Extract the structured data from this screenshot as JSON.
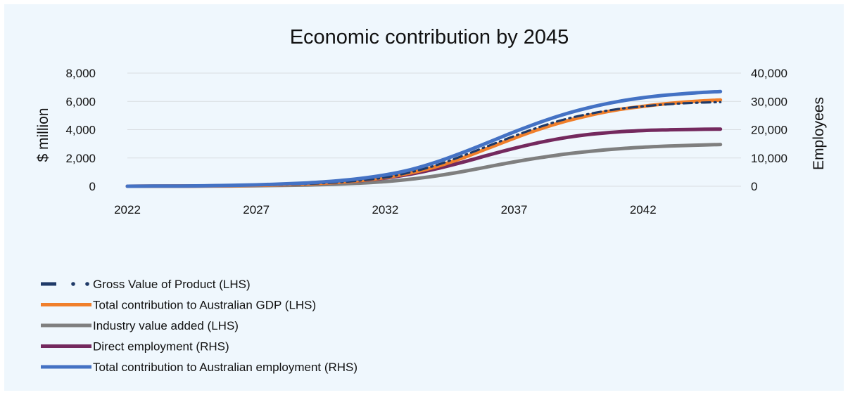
{
  "chart_data": {
    "type": "line",
    "title": "Economic contribution by 2045",
    "ylabel_left": "$ million",
    "ylabel_right": "Employees",
    "x_ticks": [
      "2022",
      "2027",
      "2032",
      "2037",
      "2042"
    ],
    "y_left_ticks": [
      "0",
      "2,000",
      "4,000",
      "6,000",
      "8,000"
    ],
    "y_right_ticks": [
      "0",
      "10,000",
      "20,000",
      "30,000",
      "40,000"
    ],
    "ylim_left": [
      0,
      8000
    ],
    "ylim_right": [
      0,
      40000
    ],
    "xlim": [
      2022,
      2045
    ],
    "grid": "horizontal",
    "legend_position": "bottom-left",
    "x": [
      2022,
      2023,
      2024,
      2025,
      2026,
      2027,
      2028,
      2029,
      2030,
      2031,
      2032,
      2033,
      2034,
      2035,
      2036,
      2037,
      2038,
      2039,
      2040,
      2041,
      2042,
      2043,
      2044,
      2045
    ],
    "series": [
      {
        "name": "Gross Value of Product (LHS)",
        "axis": "left",
        "color": "#1f3a68",
        "dash": "dash-dot",
        "values": [
          0,
          5,
          10,
          20,
          40,
          70,
          110,
          170,
          260,
          400,
          620,
          1000,
          1500,
          2150,
          2850,
          3550,
          4200,
          4750,
          5150,
          5450,
          5650,
          5800,
          5900,
          5950
        ]
      },
      {
        "name": "Total contribution to Australian GDP (LHS)",
        "axis": "left",
        "color": "#f07f2b",
        "dash": "solid",
        "values": [
          0,
          5,
          10,
          20,
          40,
          70,
          110,
          170,
          260,
          400,
          620,
          950,
          1400,
          2000,
          2700,
          3400,
          4050,
          4600,
          5050,
          5400,
          5650,
          5850,
          6000,
          6100
        ]
      },
      {
        "name": "Industry value added (LHS)",
        "axis": "left",
        "color": "#7f7f7f",
        "dash": "solid",
        "values": [
          0,
          3,
          6,
          12,
          22,
          38,
          60,
          90,
          140,
          220,
          330,
          500,
          740,
          1040,
          1380,
          1720,
          2020,
          2280,
          2480,
          2640,
          2760,
          2840,
          2900,
          2950
        ]
      },
      {
        "name": "Direct employment (RHS)",
        "axis": "right",
        "color": "#74295e",
        "dash": "solid",
        "values": [
          0,
          30,
          60,
          120,
          220,
          370,
          580,
          880,
          1300,
          1950,
          2900,
          4300,
          6200,
          8500,
          11000,
          13400,
          15500,
          17200,
          18400,
          19200,
          19700,
          19950,
          20100,
          20200
        ]
      },
      {
        "name": "Total contribution to Australian employment (RHS)",
        "axis": "right",
        "color": "#4472c4",
        "dash": "solid",
        "values": [
          0,
          40,
          80,
          160,
          300,
          500,
          800,
          1200,
          1800,
          2700,
          4000,
          5900,
          8600,
          11900,
          15500,
          19200,
          22600,
          25600,
          28000,
          29900,
          31300,
          32300,
          33000,
          33500
        ]
      }
    ]
  }
}
